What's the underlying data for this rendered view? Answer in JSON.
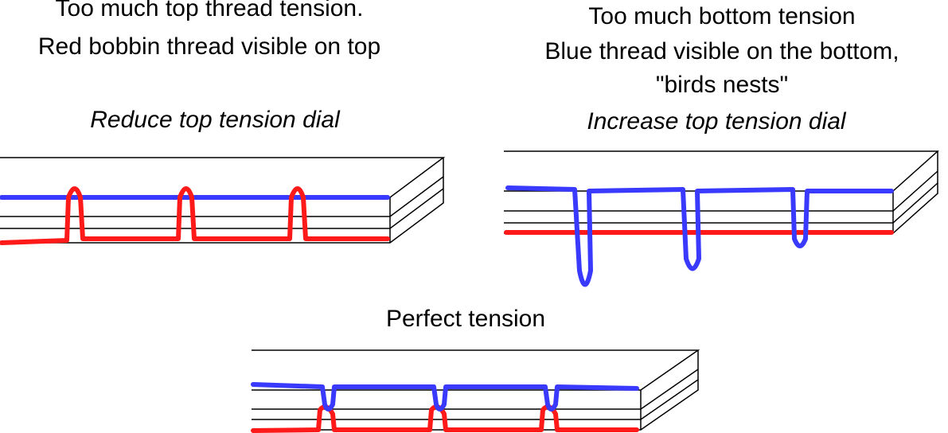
{
  "panels": [
    {
      "lines": [
        "Too much top thread tension.",
        "Red bobbin thread visible on top"
      ],
      "instruction": "Reduce top tension dial"
    },
    {
      "lines": [
        "Too much bottom tension",
        "Blue thread visible on the bottom,",
        "\"birds nests\""
      ],
      "instruction": "Increase top tension dial"
    }
  ],
  "perfect": {
    "title": "Perfect tension"
  }
}
